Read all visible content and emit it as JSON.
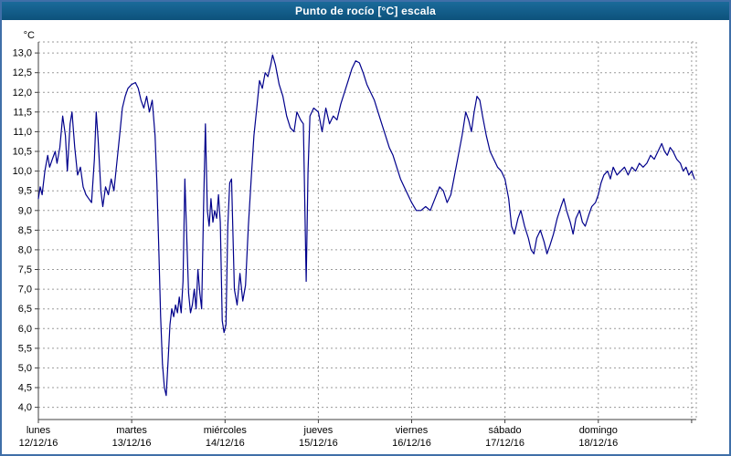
{
  "window": {
    "title": "Punto de rocío [°C] escala",
    "titlebar_color": "#0d527b",
    "titlebar_color_light": "#1a6a9a",
    "border_color": "#3f6fa8"
  },
  "chart_data": {
    "type": "line",
    "title": "Punto de rocío [°C] escala",
    "ylabel": "°C",
    "line_color": "#00008b",
    "grid": true,
    "grid_color": "#9a9a9a",
    "axis_color": "#404040",
    "ylim": [
      3.69,
      13.28
    ],
    "xlim_days": [
      0,
      7.05
    ],
    "y_ticks": [
      {
        "value": 13.0,
        "label": "13,0"
      },
      {
        "value": 12.5,
        "label": "12,5"
      },
      {
        "value": 12.0,
        "label": "12,0"
      },
      {
        "value": 11.5,
        "label": "11,5"
      },
      {
        "value": 11.0,
        "label": "11,0"
      },
      {
        "value": 10.5,
        "label": "10,5"
      },
      {
        "value": 10.0,
        "label": "10,0"
      },
      {
        "value": 9.5,
        "label": "9,5"
      },
      {
        "value": 9.0,
        "label": "9,0"
      },
      {
        "value": 8.5,
        "label": "8,5"
      },
      {
        "value": 8.0,
        "label": "8,0"
      },
      {
        "value": 7.5,
        "label": "7,5"
      },
      {
        "value": 7.0,
        "label": "7,0"
      },
      {
        "value": 6.5,
        "label": "6,5"
      },
      {
        "value": 6.0,
        "label": "6,0"
      },
      {
        "value": 5.5,
        "label": "5,5"
      },
      {
        "value": 5.0,
        "label": "5,0"
      },
      {
        "value": 4.5,
        "label": "4,5"
      },
      {
        "value": 4.0,
        "label": "4,0"
      }
    ],
    "x_ticks": [
      {
        "day": 0,
        "name": "lunes",
        "date": "12/12/16"
      },
      {
        "day": 1,
        "name": "martes",
        "date": "13/12/16"
      },
      {
        "day": 2,
        "name": "miércoles",
        "date": "14/12/16"
      },
      {
        "day": 3,
        "name": "jueves",
        "date": "15/12/16"
      },
      {
        "day": 4,
        "name": "viernes",
        "date": "16/12/16"
      },
      {
        "day": 5,
        "name": "sábado",
        "date": "17/12/16"
      },
      {
        "day": 6,
        "name": "domingo",
        "date": "18/12/16"
      }
    ],
    "vertical_grid_days": [
      1,
      2,
      3,
      4,
      5,
      6,
      7
    ],
    "series": [
      {
        "name": "Punto de rocío",
        "unit": "°C",
        "points": [
          [
            0.0,
            9.3
          ],
          [
            0.02,
            9.6
          ],
          [
            0.04,
            9.4
          ],
          [
            0.07,
            10.0
          ],
          [
            0.1,
            10.4
          ],
          [
            0.12,
            10.1
          ],
          [
            0.15,
            10.3
          ],
          [
            0.18,
            10.5
          ],
          [
            0.2,
            10.2
          ],
          [
            0.23,
            10.6
          ],
          [
            0.26,
            11.4
          ],
          [
            0.29,
            10.9
          ],
          [
            0.31,
            10.0
          ],
          [
            0.34,
            11.2
          ],
          [
            0.36,
            11.5
          ],
          [
            0.39,
            10.6
          ],
          [
            0.42,
            9.9
          ],
          [
            0.45,
            10.1
          ],
          [
            0.48,
            9.6
          ],
          [
            0.51,
            9.4
          ],
          [
            0.54,
            9.3
          ],
          [
            0.57,
            9.2
          ],
          [
            0.6,
            10.3
          ],
          [
            0.62,
            11.5
          ],
          [
            0.64,
            10.8
          ],
          [
            0.67,
            9.5
          ],
          [
            0.69,
            9.1
          ],
          [
            0.72,
            9.6
          ],
          [
            0.75,
            9.4
          ],
          [
            0.78,
            9.8
          ],
          [
            0.81,
            9.5
          ],
          [
            0.84,
            10.2
          ],
          [
            0.87,
            10.9
          ],
          [
            0.9,
            11.6
          ],
          [
            0.93,
            11.9
          ],
          [
            0.96,
            12.1
          ],
          [
            1.0,
            12.2
          ],
          [
            1.04,
            12.25
          ],
          [
            1.07,
            12.1
          ],
          [
            1.1,
            11.8
          ],
          [
            1.13,
            11.6
          ],
          [
            1.16,
            11.9
          ],
          [
            1.19,
            11.5
          ],
          [
            1.22,
            11.8
          ],
          [
            1.25,
            10.9
          ],
          [
            1.27,
            9.7
          ],
          [
            1.29,
            8.1
          ],
          [
            1.31,
            6.3
          ],
          [
            1.33,
            5.1
          ],
          [
            1.35,
            4.5
          ],
          [
            1.37,
            4.3
          ],
          [
            1.39,
            5.2
          ],
          [
            1.41,
            6.1
          ],
          [
            1.43,
            6.5
          ],
          [
            1.45,
            6.3
          ],
          [
            1.47,
            6.6
          ],
          [
            1.49,
            6.4
          ],
          [
            1.51,
            6.8
          ],
          [
            1.53,
            6.4
          ],
          [
            1.55,
            7.2
          ],
          [
            1.57,
            9.8
          ],
          [
            1.59,
            8.3
          ],
          [
            1.61,
            6.9
          ],
          [
            1.63,
            6.4
          ],
          [
            1.65,
            6.6
          ],
          [
            1.67,
            7.0
          ],
          [
            1.69,
            6.5
          ],
          [
            1.71,
            7.5
          ],
          [
            1.73,
            6.9
          ],
          [
            1.75,
            6.5
          ],
          [
            1.77,
            9.1
          ],
          [
            1.79,
            11.2
          ],
          [
            1.81,
            9.0
          ],
          [
            1.83,
            8.6
          ],
          [
            1.85,
            9.3
          ],
          [
            1.87,
            8.7
          ],
          [
            1.89,
            9.0
          ],
          [
            1.91,
            8.8
          ],
          [
            1.93,
            9.4
          ],
          [
            1.95,
            8.7
          ],
          [
            1.97,
            6.2
          ],
          [
            1.99,
            5.9
          ],
          [
            2.01,
            6.1
          ],
          [
            2.03,
            8.6
          ],
          [
            2.05,
            9.7
          ],
          [
            2.07,
            9.8
          ],
          [
            2.1,
            7.0
          ],
          [
            2.13,
            6.6
          ],
          [
            2.16,
            7.4
          ],
          [
            2.19,
            6.7
          ],
          [
            2.22,
            7.1
          ],
          [
            2.25,
            8.6
          ],
          [
            2.28,
            9.8
          ],
          [
            2.31,
            10.9
          ],
          [
            2.34,
            11.6
          ],
          [
            2.37,
            12.3
          ],
          [
            2.4,
            12.1
          ],
          [
            2.43,
            12.5
          ],
          [
            2.46,
            12.4
          ],
          [
            2.49,
            12.7
          ],
          [
            2.51,
            12.95
          ],
          [
            2.54,
            12.7
          ],
          [
            2.58,
            12.2
          ],
          [
            2.62,
            11.9
          ],
          [
            2.66,
            11.4
          ],
          [
            2.7,
            11.1
          ],
          [
            2.74,
            11.0
          ],
          [
            2.77,
            11.5
          ],
          [
            2.81,
            11.3
          ],
          [
            2.84,
            11.2
          ],
          [
            2.87,
            7.2
          ],
          [
            2.89,
            10.0
          ],
          [
            2.91,
            11.4
          ],
          [
            2.95,
            11.6
          ],
          [
            3.0,
            11.5
          ],
          [
            3.04,
            11.0
          ],
          [
            3.08,
            11.6
          ],
          [
            3.12,
            11.2
          ],
          [
            3.16,
            11.4
          ],
          [
            3.2,
            11.3
          ],
          [
            3.24,
            11.7
          ],
          [
            3.28,
            12.0
          ],
          [
            3.32,
            12.3
          ],
          [
            3.36,
            12.6
          ],
          [
            3.4,
            12.8
          ],
          [
            3.44,
            12.75
          ],
          [
            3.48,
            12.5
          ],
          [
            3.52,
            12.2
          ],
          [
            3.56,
            12.0
          ],
          [
            3.6,
            11.8
          ],
          [
            3.64,
            11.5
          ],
          [
            3.68,
            11.2
          ],
          [
            3.72,
            10.9
          ],
          [
            3.76,
            10.6
          ],
          [
            3.8,
            10.4
          ],
          [
            3.84,
            10.1
          ],
          [
            3.88,
            9.8
          ],
          [
            3.92,
            9.6
          ],
          [
            3.96,
            9.4
          ],
          [
            4.0,
            9.2
          ],
          [
            4.05,
            9.0
          ],
          [
            4.1,
            9.0
          ],
          [
            4.15,
            9.1
          ],
          [
            4.2,
            9.0
          ],
          [
            4.25,
            9.3
          ],
          [
            4.3,
            9.6
          ],
          [
            4.34,
            9.5
          ],
          [
            4.38,
            9.2
          ],
          [
            4.42,
            9.4
          ],
          [
            4.46,
            9.9
          ],
          [
            4.5,
            10.4
          ],
          [
            4.54,
            10.9
          ],
          [
            4.58,
            11.5
          ],
          [
            4.61,
            11.3
          ],
          [
            4.64,
            11.0
          ],
          [
            4.67,
            11.5
          ],
          [
            4.7,
            11.9
          ],
          [
            4.73,
            11.8
          ],
          [
            4.76,
            11.4
          ],
          [
            4.8,
            10.9
          ],
          [
            4.84,
            10.5
          ],
          [
            4.88,
            10.3
          ],
          [
            4.92,
            10.1
          ],
          [
            4.96,
            10.0
          ],
          [
            5.0,
            9.8
          ],
          [
            5.04,
            9.3
          ],
          [
            5.07,
            8.6
          ],
          [
            5.1,
            8.4
          ],
          [
            5.14,
            8.8
          ],
          [
            5.17,
            9.0
          ],
          [
            5.21,
            8.6
          ],
          [
            5.25,
            8.3
          ],
          [
            5.28,
            8.0
          ],
          [
            5.31,
            7.9
          ],
          [
            5.34,
            8.3
          ],
          [
            5.38,
            8.5
          ],
          [
            5.42,
            8.2
          ],
          [
            5.45,
            7.9
          ],
          [
            5.48,
            8.1
          ],
          [
            5.52,
            8.4
          ],
          [
            5.56,
            8.8
          ],
          [
            5.6,
            9.1
          ],
          [
            5.63,
            9.3
          ],
          [
            5.66,
            9.0
          ],
          [
            5.7,
            8.7
          ],
          [
            5.73,
            8.4
          ],
          [
            5.76,
            8.8
          ],
          [
            5.8,
            9.0
          ],
          [
            5.83,
            8.7
          ],
          [
            5.86,
            8.6
          ],
          [
            5.9,
            8.9
          ],
          [
            5.93,
            9.1
          ],
          [
            5.97,
            9.2
          ],
          [
            6.0,
            9.4
          ],
          [
            6.03,
            9.7
          ],
          [
            6.06,
            9.9
          ],
          [
            6.1,
            10.0
          ],
          [
            6.13,
            9.8
          ],
          [
            6.16,
            10.1
          ],
          [
            6.2,
            9.9
          ],
          [
            6.24,
            10.0
          ],
          [
            6.28,
            10.1
          ],
          [
            6.32,
            9.9
          ],
          [
            6.36,
            10.1
          ],
          [
            6.4,
            10.0
          ],
          [
            6.44,
            10.2
          ],
          [
            6.48,
            10.1
          ],
          [
            6.52,
            10.2
          ],
          [
            6.56,
            10.4
          ],
          [
            6.6,
            10.3
          ],
          [
            6.64,
            10.5
          ],
          [
            6.68,
            10.7
          ],
          [
            6.71,
            10.5
          ],
          [
            6.74,
            10.4
          ],
          [
            6.77,
            10.6
          ],
          [
            6.8,
            10.5
          ],
          [
            6.84,
            10.3
          ],
          [
            6.88,
            10.2
          ],
          [
            6.91,
            10.0
          ],
          [
            6.94,
            10.1
          ],
          [
            6.97,
            9.9
          ],
          [
            7.0,
            10.0
          ],
          [
            7.03,
            9.8
          ]
        ]
      }
    ]
  }
}
